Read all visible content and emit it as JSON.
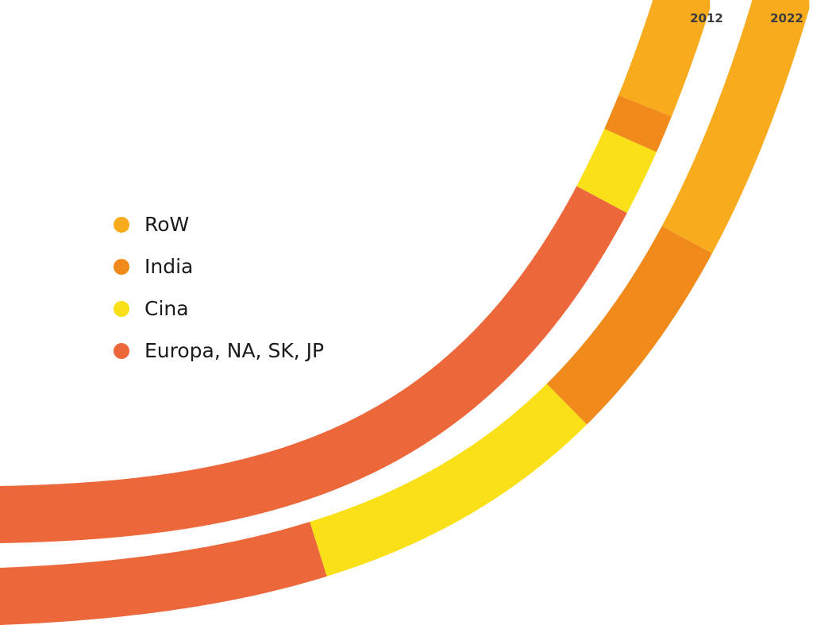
{
  "chart_data": {
    "type": "stacked-arc-bar",
    "categories": [
      "2012",
      "2022"
    ],
    "series": [
      {
        "name": "Europa, NA, SK, JP",
        "color": "#EC673A",
        "values": [
          77,
          30
        ]
      },
      {
        "name": "Cina",
        "color": "#FAE017",
        "values": [
          7,
          27
        ]
      },
      {
        "name": "India",
        "color": "#F08A1A",
        "values": [
          4,
          19
        ]
      },
      {
        "name": "RoW",
        "color": "#F8AB1C",
        "values": [
          12,
          24
        ]
      }
    ],
    "unit": "%",
    "legend_position": "left",
    "grid": false
  }
}
